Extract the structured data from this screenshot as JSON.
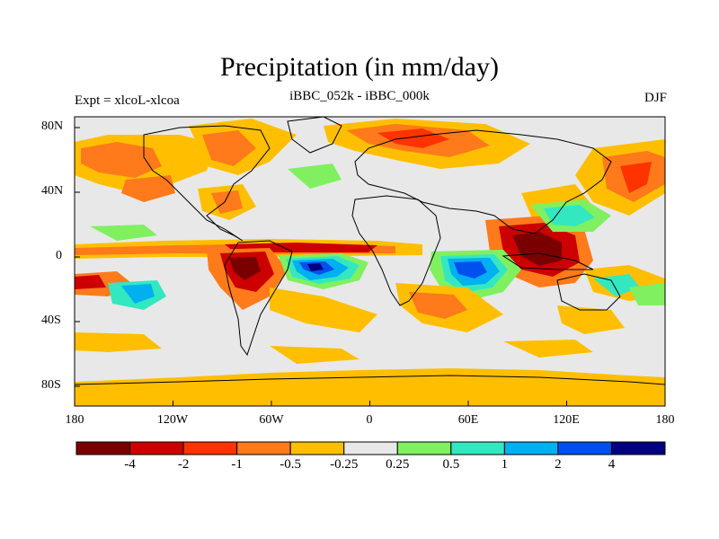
{
  "title": "Precipitation (in mm/day)",
  "subtitle_left": "Expt = xlcoL-xlcoa",
  "subtitle_center": "iBBC_052k - iBBC_000k",
  "subtitle_right": "DJF",
  "lat_labels": [
    "80N",
    "40N",
    "0",
    "40S",
    "80S"
  ],
  "lon_labels": [
    "180",
    "120W",
    "60W",
    "0",
    "60E",
    "120E",
    "180"
  ],
  "colorbar": {
    "colors": [
      "#7a0000",
      "#cc0000",
      "#ff3300",
      "#ff7a1a",
      "#ffbf00",
      "#e8e8e8",
      "#80f060",
      "#33e8c0",
      "#00b0f0",
      "#0050f0",
      "#000080"
    ],
    "labels": [
      "-4",
      "-2",
      "-1",
      "-0.5",
      "-0.25",
      "0.25",
      "0.5",
      "1",
      "2",
      "4"
    ]
  },
  "colors": {
    "background": "#e8e8e8",
    "coast": "#000000"
  }
}
